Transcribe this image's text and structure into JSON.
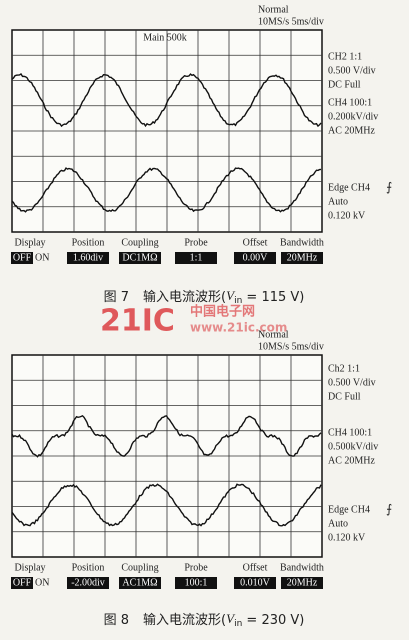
{
  "figures": [
    {
      "scope": {
        "header": [
          "Normal",
          "10MS/s  5ms/div"
        ],
        "marker": "Main 500k",
        "channels": [
          "CH2  1:1",
          "0.500 V/div",
          "DC  Full",
          "CH4  100:1",
          "0.200kV/div",
          "AC  20MHz",
          "Edge  CH4",
          "Auto",
          "0.120 kV"
        ],
        "menu": {
          "labels": [
            "Display",
            "Position",
            "Coupling",
            "Probe",
            "Offset",
            "Bandwidth"
          ],
          "values": [
            "OFF",
            "1.60div",
            "DC1MΩ",
            "1:1",
            "0.00V",
            "20MHz"
          ],
          "display_on": "ON"
        }
      },
      "caption": {
        "label": "图 7",
        "text": "输入电流波形(",
        "symbol": "V",
        "subscript": "in",
        "tail": " = 115 V)"
      }
    },
    {
      "scope": {
        "header": [
          "Normal",
          "10MS/s  5ms/div"
        ],
        "channels": [
          "Ch2  1:1",
          "0.500 V/div",
          "DC  Full",
          "CH4  100:1",
          "0.500kV/div",
          "AC  20MHz",
          "Edge  CH4",
          "Auto",
          "0.120 kV"
        ],
        "menu": {
          "labels": [
            "Display",
            "Position",
            "Coupling",
            "Probe",
            "Offset",
            "Bandwidth"
          ],
          "values": [
            "OFF",
            "-2.00div",
            "AC1MΩ",
            "100:1",
            "0.010V",
            "20MHz"
          ],
          "display_on": "ON"
        }
      },
      "caption": {
        "label": "图 8",
        "text": "输入电流波形(",
        "symbol": "V",
        "subscript": "in",
        "tail": " = 230 V)"
      }
    }
  ],
  "watermark": {
    "logo": "21IC",
    "name": "中国电子网",
    "url": "www.21ic.com"
  }
}
